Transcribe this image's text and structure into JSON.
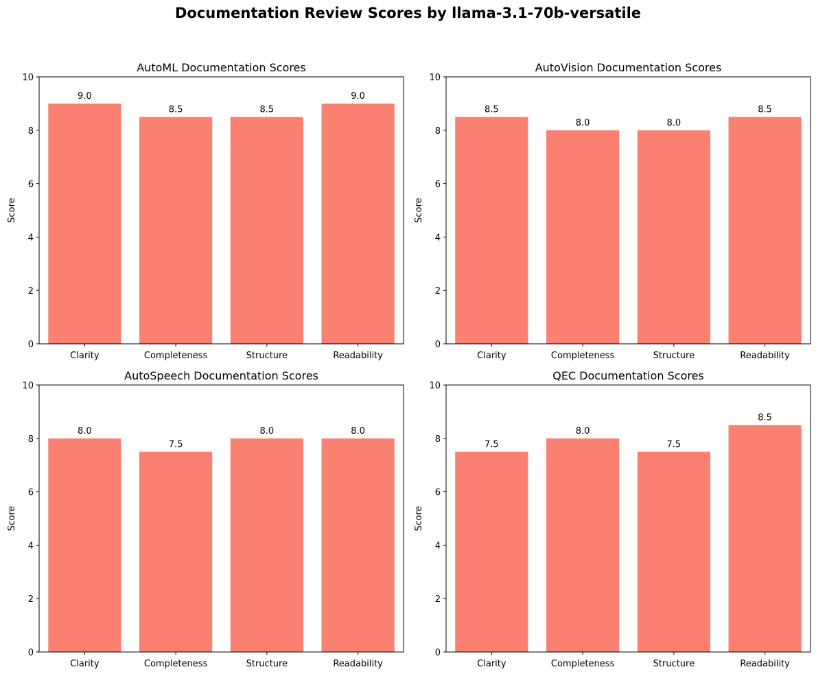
{
  "figure": {
    "title": "Documentation Review Scores by llama-3.1-70b-versatile"
  },
  "colors": {
    "bar": "#fa8072"
  },
  "chart_data": [
    {
      "type": "bar",
      "title": "AutoML Documentation Scores",
      "xlabel": "",
      "ylabel": "Score",
      "categories": [
        "Clarity",
        "Completeness",
        "Structure",
        "Readability"
      ],
      "values": [
        9.0,
        8.5,
        8.5,
        9.0
      ],
      "value_labels": [
        "9.0",
        "8.5",
        "8.5",
        "9.0"
      ],
      "ylim": [
        0,
        10
      ],
      "yticks": [
        "0",
        "2",
        "4",
        "6",
        "8",
        "10"
      ],
      "grid": false
    },
    {
      "type": "bar",
      "title": "AutoVision Documentation Scores",
      "xlabel": "",
      "ylabel": "Score",
      "categories": [
        "Clarity",
        "Completeness",
        "Structure",
        "Readability"
      ],
      "values": [
        8.5,
        8.0,
        8.0,
        8.5
      ],
      "value_labels": [
        "8.5",
        "8.0",
        "8.0",
        "8.5"
      ],
      "ylim": [
        0,
        10
      ],
      "yticks": [
        "0",
        "2",
        "4",
        "6",
        "8",
        "10"
      ],
      "grid": false
    },
    {
      "type": "bar",
      "title": "AutoSpeech Documentation Scores",
      "xlabel": "",
      "ylabel": "Score",
      "categories": [
        "Clarity",
        "Completeness",
        "Structure",
        "Readability"
      ],
      "values": [
        8.0,
        7.5,
        8.0,
        8.0
      ],
      "value_labels": [
        "8.0",
        "7.5",
        "8.0",
        "8.0"
      ],
      "ylim": [
        0,
        10
      ],
      "yticks": [
        "0",
        "2",
        "4",
        "6",
        "8",
        "10"
      ],
      "grid": false
    },
    {
      "type": "bar",
      "title": "QEC Documentation Scores",
      "xlabel": "",
      "ylabel": "Score",
      "categories": [
        "Clarity",
        "Completeness",
        "Structure",
        "Readability"
      ],
      "values": [
        7.5,
        8.0,
        7.5,
        8.5
      ],
      "value_labels": [
        "7.5",
        "8.0",
        "7.5",
        "8.5"
      ],
      "ylim": [
        0,
        10
      ],
      "yticks": [
        "0",
        "2",
        "4",
        "6",
        "8",
        "10"
      ],
      "grid": false
    }
  ]
}
